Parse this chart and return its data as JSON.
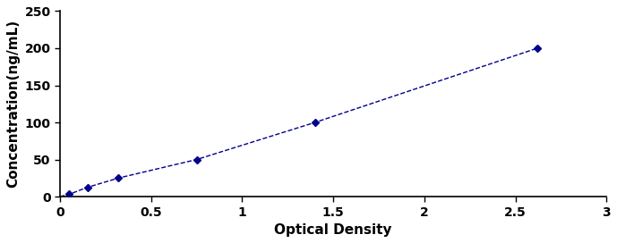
{
  "x": [
    0.0,
    0.05,
    0.15,
    0.32,
    0.75,
    1.4,
    2.62
  ],
  "y": [
    0.0,
    3.125,
    12.5,
    25.0,
    50.0,
    100.0,
    200.0
  ],
  "data_points_x": [
    0.05,
    0.15,
    0.32,
    0.75,
    1.4,
    2.62
  ],
  "data_points_y": [
    3.125,
    12.5,
    25.0,
    50.0,
    100.0,
    200.0
  ],
  "line_color": "#00008B",
  "marker_color": "#00008B",
  "xlabel": "Optical Density",
  "ylabel": "Concentration(ng/mL)",
  "xlim": [
    0,
    3
  ],
  "ylim": [
    0,
    250
  ],
  "xticks": [
    0,
    0.5,
    1,
    1.5,
    2,
    2.5,
    3
  ],
  "yticks": [
    0,
    50,
    100,
    150,
    200,
    250
  ],
  "xlabel_fontsize": 11,
  "ylabel_fontsize": 11,
  "tick_fontsize": 10,
  "background_color": "#ffffff"
}
